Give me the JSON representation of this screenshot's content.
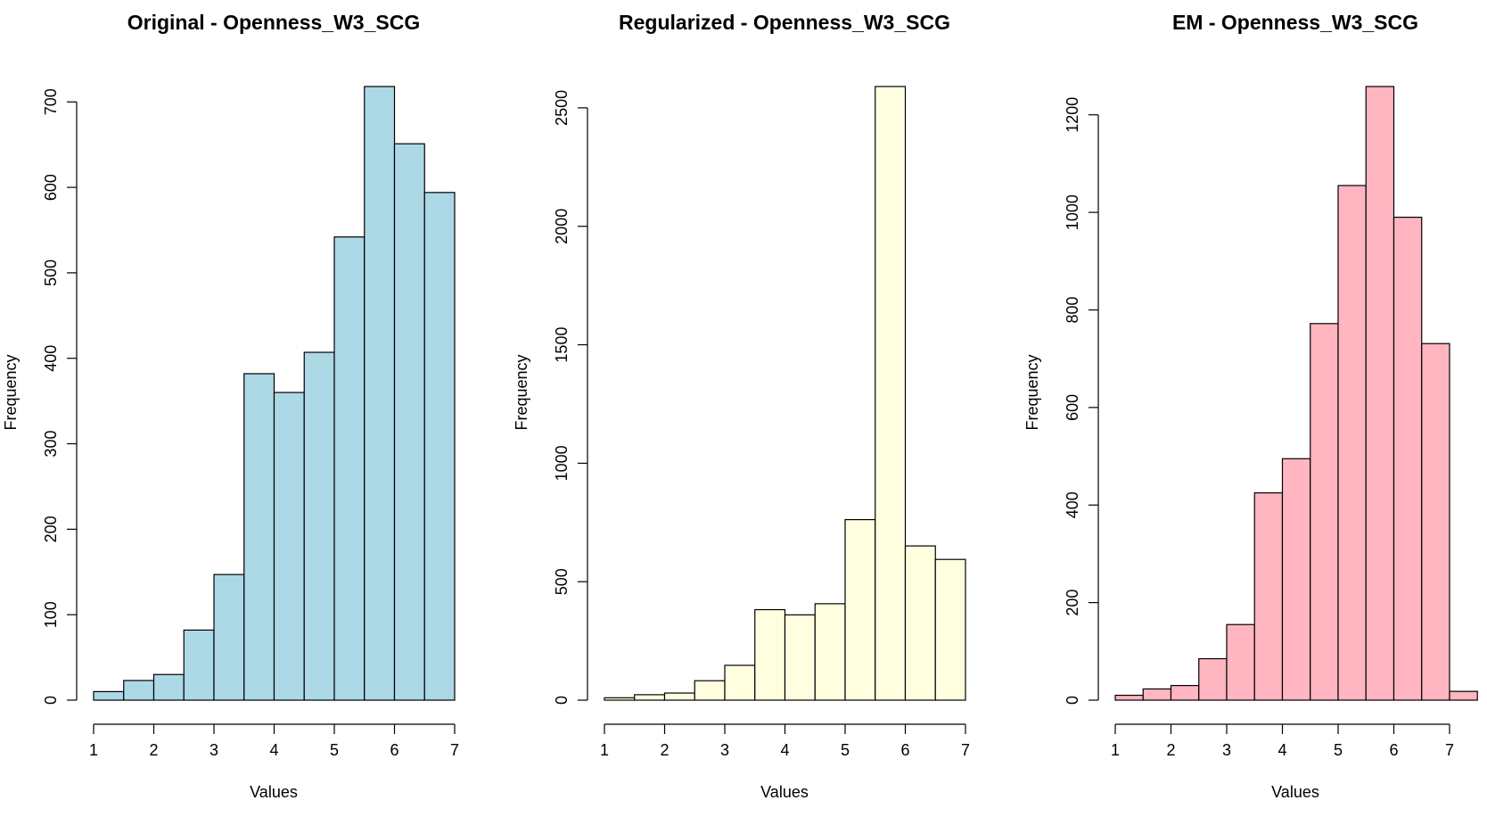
{
  "chart_data": [
    {
      "type": "bar",
      "title": "Original - Openness_W3_SCG",
      "xlabel": "Values",
      "ylabel": "Frequency",
      "bar_color": "#add8e6",
      "bins": [
        [
          1,
          1.5
        ],
        [
          1.5,
          2
        ],
        [
          2,
          2.5
        ],
        [
          2.5,
          3
        ],
        [
          3,
          3.5
        ],
        [
          3.5,
          4
        ],
        [
          4,
          4.5
        ],
        [
          4.5,
          5
        ],
        [
          5,
          5.5
        ],
        [
          5.5,
          6
        ],
        [
          6,
          6.5
        ],
        [
          6.5,
          7
        ]
      ],
      "values": [
        10,
        23,
        30,
        82,
        147,
        382,
        360,
        407,
        542,
        718,
        651,
        594
      ],
      "xlim": [
        1,
        7
      ],
      "ylim": [
        0,
        718
      ],
      "x_ticks": [
        1,
        2,
        3,
        4,
        5,
        6,
        7
      ],
      "y_ticks": [
        0,
        100,
        200,
        300,
        400,
        500,
        600,
        700
      ]
    },
    {
      "type": "bar",
      "title": "Regularized - Openness_W3_SCG",
      "xlabel": "Values",
      "ylabel": "Frequency",
      "bar_color": "#ffffe0",
      "bins": [
        [
          1,
          1.5
        ],
        [
          1.5,
          2
        ],
        [
          2,
          2.5
        ],
        [
          2.5,
          3
        ],
        [
          3,
          3.5
        ],
        [
          3.5,
          4
        ],
        [
          4,
          4.5
        ],
        [
          4.5,
          5
        ],
        [
          5,
          5.5
        ],
        [
          5.5,
          6
        ],
        [
          6,
          6.5
        ],
        [
          6.5,
          7
        ]
      ],
      "values": [
        10,
        23,
        30,
        82,
        147,
        382,
        360,
        407,
        762,
        2590,
        651,
        594
      ],
      "xlim": [
        1,
        7
      ],
      "ylim": [
        0,
        2590
      ],
      "x_ticks": [
        1,
        2,
        3,
        4,
        5,
        6,
        7
      ],
      "y_ticks": [
        0,
        500,
        1000,
        1500,
        2000,
        2500
      ]
    },
    {
      "type": "bar",
      "title": "EM - Openness_W3_SCG",
      "xlabel": "Values",
      "ylabel": "Frequency",
      "bar_color": "#ffb6c1",
      "bins": [
        [
          1,
          1.5
        ],
        [
          1.5,
          2
        ],
        [
          2,
          2.5
        ],
        [
          2.5,
          3
        ],
        [
          3,
          3.5
        ],
        [
          3.5,
          4
        ],
        [
          4,
          4.5
        ],
        [
          4.5,
          5
        ],
        [
          5,
          5.5
        ],
        [
          5.5,
          6
        ],
        [
          6,
          6.5
        ],
        [
          6.5,
          7
        ],
        [
          7,
          7.5
        ]
      ],
      "values": [
        10,
        23,
        30,
        85,
        155,
        425,
        495,
        772,
        1055,
        1258,
        990,
        731,
        18
      ],
      "xlim": [
        1,
        7
      ],
      "ylim": [
        0,
        1258
      ],
      "x_ticks": [
        1,
        2,
        3,
        4,
        5,
        6,
        7
      ],
      "y_ticks": [
        0,
        200,
        400,
        600,
        800,
        1000,
        1200
      ]
    }
  ]
}
